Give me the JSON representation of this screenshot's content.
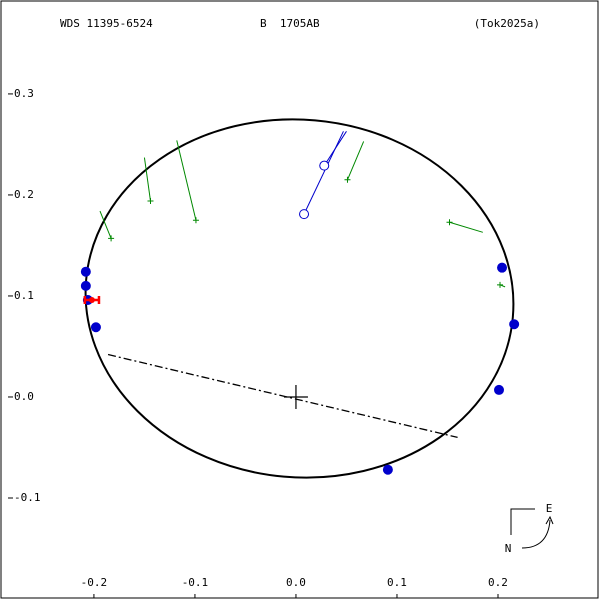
{
  "chart_data": {
    "type": "orbit",
    "title": "WDS 11395-6524",
    "subtitle": "B  1705AB",
    "reference": "(Tok2025a)",
    "xlim": [
      -0.291,
      0.299
    ],
    "ylim": [
      -0.199,
      0.391
    ],
    "xticks": [
      -0.2,
      -0.1,
      {
        "value": 0,
        "label": "0.0"
      },
      0.1,
      0.2
    ],
    "yticks": [
      0.3,
      0.2,
      0.1,
      {
        "value": 0,
        "label": "0.0"
      },
      -0.1
    ],
    "orbit": {
      "color": "#000000",
      "center_x": 0.0035,
      "center_y": 0.0975,
      "semi_major": 0.212,
      "semi_minor": 0.177,
      "angle_deg": -5
    },
    "line_of_nodes": {
      "x": [
        -0.186,
        0.16
      ],
      "y": [
        0.042,
        -0.04
      ]
    },
    "origin": {
      "x": 0,
      "y": 0
    },
    "speckle": {
      "color": "#0000cc",
      "x": [
        -0.208,
        -0.208,
        -0.206,
        -0.198,
        0.204,
        0.216,
        0.201,
        0.091
      ],
      "y": [
        0.124,
        0.11,
        0.096,
        0.069,
        0.128,
        0.072,
        0.007,
        -0.072
      ]
    },
    "micrometric": {
      "color": "#008800",
      "x": [
        -0.183,
        -0.144,
        -0.099,
        0.051,
        0.152,
        0.202
      ],
      "y": [
        0.157,
        0.194,
        0.175,
        0.215,
        0.173,
        0.111
      ],
      "x_end": [
        -0.194,
        -0.15,
        -0.118,
        0.067,
        0.185,
        0.207
      ],
      "y_end": [
        0.184,
        0.237,
        0.254,
        0.253,
        0.163,
        0.109
      ]
    },
    "open": {
      "color": "#0000cc",
      "x": [
        0.008,
        0.028
      ],
      "y": [
        0.181,
        0.229
      ],
      "x_end": [
        0.047,
        0.05
      ],
      "y_end": [
        0.263,
        0.263
      ]
    },
    "recent": {
      "color": "#ff0000",
      "x": [
        -0.202
      ],
      "y": [
        0.096
      ],
      "x_err": [
        0.007
      ]
    },
    "compass": {
      "east": "E",
      "north": "N"
    }
  }
}
